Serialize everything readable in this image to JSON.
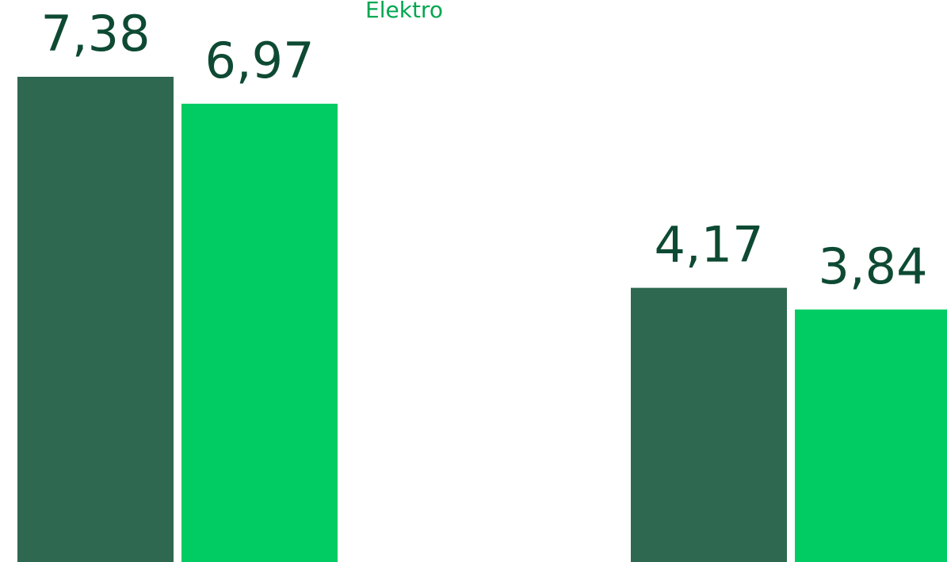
{
  "chart_data": {
    "type": "bar",
    "annotations": [
      "Elektro"
    ],
    "categories": [
      null,
      null
    ],
    "series": [
      {
        "color": "#2e6850",
        "values": [
          7.38,
          4.17
        ],
        "value_labels": [
          "7,38",
          "4,17"
        ]
      },
      {
        "color": "#00cc63",
        "values": [
          6.97,
          3.84
        ],
        "value_labels": [
          "6,97",
          "3,84"
        ]
      }
    ],
    "ylim": [
      0,
      8
    ]
  }
}
